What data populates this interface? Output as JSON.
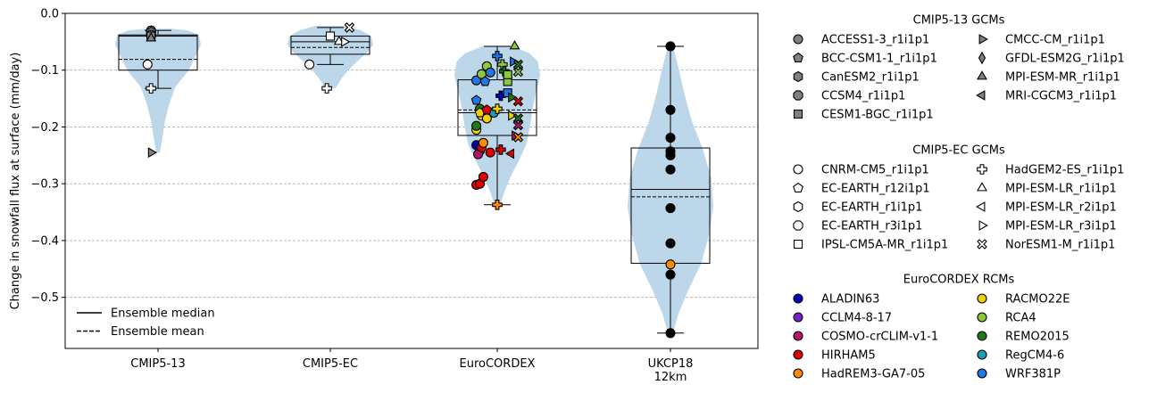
{
  "chart_data": {
    "type": "violin",
    "ylabel": "Change in snowfall flux at surface (mm/day)",
    "ylim": [
      -0.59,
      0.0
    ],
    "yticks": [
      0.0,
      -0.1,
      -0.2,
      -0.3,
      -0.4,
      -0.5
    ],
    "ytick_labels": [
      "0.0",
      "−0.1",
      "−0.2",
      "−0.3",
      "−0.4",
      "−0.5"
    ],
    "grid": "horizontal-dashed",
    "categories": [
      {
        "name": "CMIP5-13",
        "label_lines": [
          "CMIP5-13"
        ]
      },
      {
        "name": "CMIP5-EC",
        "label_lines": [
          "CMIP5-EC"
        ]
      },
      {
        "name": "EuroCORDEX",
        "label_lines": [
          "EuroCORDEX"
        ]
      },
      {
        "name": "UKCP18 12km",
        "label_lines": [
          "UKCP18",
          "12km"
        ]
      }
    ],
    "violin_color": "#bcd6ea",
    "boxes": [
      {
        "q1": -0.1,
        "median": -0.04,
        "q3": -0.038,
        "mean": -0.081,
        "wlo": -0.132,
        "whi": -0.03
      },
      {
        "q1": -0.072,
        "median": -0.05,
        "q3": -0.04,
        "mean": -0.06,
        "wlo": -0.09,
        "whi": -0.025
      },
      {
        "q1": -0.215,
        "median": -0.175,
        "q3": -0.117,
        "mean": -0.17,
        "wlo": -0.337,
        "whi": -0.058
      },
      {
        "q1": -0.44,
        "median": -0.31,
        "q3": -0.237,
        "mean": -0.323,
        "wlo": -0.563,
        "whi": -0.058
      }
    ],
    "violins": [
      {
        "profile": [
          [
            -0.245,
            0.04
          ],
          [
            -0.22,
            0.1
          ],
          [
            -0.19,
            0.16
          ],
          [
            -0.16,
            0.26
          ],
          [
            -0.13,
            0.4
          ],
          [
            -0.1,
            0.72
          ],
          [
            -0.075,
            0.88
          ],
          [
            -0.055,
            1.0
          ],
          [
            -0.038,
            0.95
          ],
          [
            -0.03,
            0.7
          ],
          [
            -0.027,
            0.3
          ]
        ]
      },
      {
        "profile": [
          [
            -0.132,
            0.12
          ],
          [
            -0.115,
            0.26
          ],
          [
            -0.1,
            0.42
          ],
          [
            -0.085,
            0.62
          ],
          [
            -0.07,
            0.85
          ],
          [
            -0.055,
            1.0
          ],
          [
            -0.04,
            0.95
          ],
          [
            -0.03,
            0.72
          ],
          [
            -0.022,
            0.35
          ]
        ]
      },
      {
        "profile": [
          [
            -0.337,
            0.07
          ],
          [
            -0.32,
            0.14
          ],
          [
            -0.3,
            0.24
          ],
          [
            -0.28,
            0.36
          ],
          [
            -0.26,
            0.5
          ],
          [
            -0.23,
            0.68
          ],
          [
            -0.2,
            0.76
          ],
          [
            -0.17,
            0.82
          ],
          [
            -0.14,
            0.9
          ],
          [
            -0.11,
            1.0
          ],
          [
            -0.085,
            0.95
          ],
          [
            -0.07,
            0.75
          ],
          [
            -0.058,
            0.35
          ]
        ]
      },
      {
        "profile": [
          [
            -0.563,
            0.06
          ],
          [
            -0.53,
            0.18
          ],
          [
            -0.49,
            0.4
          ],
          [
            -0.44,
            0.72
          ],
          [
            -0.39,
            0.9
          ],
          [
            -0.34,
            1.0
          ],
          [
            -0.29,
            0.95
          ],
          [
            -0.24,
            0.76
          ],
          [
            -0.19,
            0.5
          ],
          [
            -0.14,
            0.32
          ],
          [
            -0.1,
            0.2
          ],
          [
            -0.07,
            0.1
          ],
          [
            -0.058,
            0.05
          ]
        ]
      }
    ],
    "points": [
      {
        "cat": 0,
        "dx": -0.06,
        "y": -0.09,
        "marker": "circle",
        "fill": "#ffffff"
      },
      {
        "cat": 0,
        "dx": -0.04,
        "y": -0.132,
        "marker": "plus",
        "fill": "#ffffff"
      },
      {
        "cat": 0,
        "dx": -0.04,
        "y": -0.245,
        "marker": "tri-right",
        "fill": "#808080"
      },
      {
        "cat": 0,
        "dx": -0.04,
        "y": -0.03,
        "marker": "circle",
        "fill": "#808080"
      },
      {
        "cat": 0,
        "dx": -0.04,
        "y": -0.035,
        "marker": "pentagon",
        "fill": "#808080"
      },
      {
        "cat": 0,
        "dx": -0.04,
        "y": -0.033,
        "marker": "hexagon",
        "fill": "#808080"
      },
      {
        "cat": 0,
        "dx": -0.04,
        "y": -0.038,
        "marker": "octagon",
        "fill": "#808080"
      },
      {
        "cat": 0,
        "dx": -0.04,
        "y": -0.04,
        "marker": "square",
        "fill": "#808080"
      },
      {
        "cat": 0,
        "dx": -0.04,
        "y": -0.044,
        "marker": "triangle",
        "fill": "#808080"
      },
      {
        "cat": 1,
        "dx": -0.12,
        "y": -0.09,
        "marker": "circle",
        "fill": "#ffffff"
      },
      {
        "cat": 1,
        "dx": -0.02,
        "y": -0.132,
        "marker": "plus",
        "fill": "#ffffff"
      },
      {
        "cat": 1,
        "dx": 0.0,
        "y": -0.04,
        "marker": "square",
        "fill": "#ffffff"
      },
      {
        "cat": 1,
        "dx": 0.05,
        "y": -0.05,
        "marker": "triangle",
        "fill": "#ffffff"
      },
      {
        "cat": 1,
        "dx": 0.08,
        "y": -0.05,
        "marker": "tri-right",
        "fill": "#ffffff"
      },
      {
        "cat": 1,
        "dx": 0.11,
        "y": -0.025,
        "marker": "x",
        "fill": "#ffffff"
      },
      {
        "cat": 2,
        "dx": -0.12,
        "y": -0.232,
        "marker": "circle",
        "fill": "#0000b4"
      },
      {
        "cat": 2,
        "dx": -0.1,
        "y": -0.242,
        "marker": "circle",
        "fill": "#7a1fc8"
      },
      {
        "cat": 2,
        "dx": -0.11,
        "y": -0.248,
        "marker": "circle",
        "fill": "#b4146e"
      },
      {
        "cat": 2,
        "dx": -0.04,
        "y": -0.245,
        "marker": "circle",
        "fill": "#e00000"
      },
      {
        "cat": 2,
        "dx": -0.12,
        "y": -0.302,
        "marker": "circle",
        "fill": "#e00000"
      },
      {
        "cat": 2,
        "dx": -0.1,
        "y": -0.3,
        "marker": "circle",
        "fill": "#e00000"
      },
      {
        "cat": 2,
        "dx": -0.08,
        "y": -0.288,
        "marker": "circle",
        "fill": "#e00000"
      },
      {
        "cat": 2,
        "dx": -0.09,
        "y": -0.236,
        "marker": "circle",
        "fill": "#e00000"
      },
      {
        "cat": 2,
        "dx": -0.08,
        "y": -0.228,
        "marker": "circle",
        "fill": "#ff8c00"
      },
      {
        "cat": 2,
        "dx": -0.12,
        "y": -0.205,
        "marker": "circle",
        "fill": "#f0d000"
      },
      {
        "cat": 2,
        "dx": -0.12,
        "y": -0.198,
        "marker": "circle",
        "fill": "#1a7a1a"
      },
      {
        "cat": 2,
        "dx": -0.09,
        "y": -0.18,
        "marker": "circle",
        "fill": "#f0d000"
      },
      {
        "cat": 2,
        "dx": -0.1,
        "y": -0.168,
        "marker": "circle",
        "fill": "#1a7a1a"
      },
      {
        "cat": 2,
        "dx": -0.06,
        "y": -0.185,
        "marker": "circle",
        "fill": "#f0d000"
      },
      {
        "cat": 2,
        "dx": -0.02,
        "y": -0.175,
        "marker": "circle",
        "fill": "#1aa0b4"
      },
      {
        "cat": 2,
        "dx": -0.12,
        "y": -0.118,
        "marker": "circle",
        "fill": "#1e78e6"
      },
      {
        "cat": 2,
        "dx": -0.09,
        "y": -0.107,
        "marker": "circle",
        "fill": "#8cc83c"
      },
      {
        "cat": 2,
        "dx": -0.06,
        "y": -0.093,
        "marker": "circle",
        "fill": "#8cc83c"
      },
      {
        "cat": 2,
        "dx": -0.04,
        "y": -0.104,
        "marker": "circle",
        "fill": "#1e78e6"
      },
      {
        "cat": 2,
        "dx": 0.02,
        "y": -0.24,
        "marker": "plus",
        "fill": "#e00000"
      },
      {
        "cat": 2,
        "dx": 0.0,
        "y": -0.337,
        "marker": "plus",
        "fill": "#ff8c00"
      },
      {
        "cat": 2,
        "dx": 0.0,
        "y": -0.168,
        "marker": "plus",
        "fill": "#f0d000"
      },
      {
        "cat": 2,
        "dx": 0.02,
        "y": -0.145,
        "marker": "plus",
        "fill": "#0000b4"
      },
      {
        "cat": 2,
        "dx": 0.0,
        "y": -0.075,
        "marker": "plus",
        "fill": "#1e78e6"
      },
      {
        "cat": 2,
        "dx": 0.03,
        "y": -0.09,
        "marker": "plus",
        "fill": "#8cc83c"
      },
      {
        "cat": 2,
        "dx": 0.04,
        "y": -0.102,
        "marker": "plus",
        "fill": "#1a7a1a"
      },
      {
        "cat": 2,
        "dx": -0.12,
        "y": -0.153,
        "marker": "pentagon",
        "fill": "#1e78e6"
      },
      {
        "cat": 2,
        "dx": -0.1,
        "y": -0.175,
        "marker": "pentagon",
        "fill": "#f0d000"
      },
      {
        "cat": 2,
        "dx": -0.06,
        "y": -0.17,
        "marker": "pentagon",
        "fill": "#e00000"
      },
      {
        "cat": 2,
        "dx": -0.07,
        "y": -0.12,
        "marker": "pentagon",
        "fill": "#1e78e6"
      },
      {
        "cat": 2,
        "dx": 0.06,
        "y": -0.12,
        "marker": "square",
        "fill": "#8cc83c"
      },
      {
        "cat": 2,
        "dx": 0.06,
        "y": -0.14,
        "marker": "square",
        "fill": "#1e78e6"
      },
      {
        "cat": 2,
        "dx": 0.06,
        "y": -0.108,
        "marker": "square",
        "fill": "#8cc83c"
      },
      {
        "cat": 2,
        "dx": 0.08,
        "y": -0.148,
        "marker": "tri-right",
        "fill": "#1a7a1a"
      },
      {
        "cat": 2,
        "dx": 0.09,
        "y": -0.085,
        "marker": "tri-right",
        "fill": "#1e78e6"
      },
      {
        "cat": 2,
        "dx": 0.08,
        "y": -0.18,
        "marker": "tri-right",
        "fill": "#f0d000"
      },
      {
        "cat": 2,
        "dx": 0.1,
        "y": -0.215,
        "marker": "tri-right",
        "fill": "#b4146e"
      },
      {
        "cat": 2,
        "dx": 0.1,
        "y": -0.058,
        "marker": "triangle",
        "fill": "#8cc83c"
      },
      {
        "cat": 2,
        "dx": 0.08,
        "y": -0.247,
        "marker": "tri-left",
        "fill": "#e00000"
      },
      {
        "cat": 2,
        "dx": 0.12,
        "y": -0.103,
        "marker": "x",
        "fill": "#8cc83c"
      },
      {
        "cat": 2,
        "dx": 0.12,
        "y": -0.09,
        "marker": "x",
        "fill": "#1a7a1a"
      },
      {
        "cat": 2,
        "dx": 0.12,
        "y": -0.155,
        "marker": "x",
        "fill": "#e00000"
      },
      {
        "cat": 2,
        "dx": 0.12,
        "y": -0.185,
        "marker": "x",
        "fill": "#1a7a1a"
      },
      {
        "cat": 2,
        "dx": 0.12,
        "y": -0.197,
        "marker": "x",
        "fill": "#b4146e"
      },
      {
        "cat": 2,
        "dx": 0.12,
        "y": -0.218,
        "marker": "x",
        "fill": "#ff8c00"
      },
      {
        "cat": 3,
        "dx": 0.0,
        "y": -0.058,
        "marker": "circle",
        "fill": "#000000"
      },
      {
        "cat": 3,
        "dx": 0.0,
        "y": -0.17,
        "marker": "circle",
        "fill": "#000000"
      },
      {
        "cat": 3,
        "dx": 0.0,
        "y": -0.219,
        "marker": "circle",
        "fill": "#000000"
      },
      {
        "cat": 3,
        "dx": 0.0,
        "y": -0.243,
        "marker": "circle",
        "fill": "#000000"
      },
      {
        "cat": 3,
        "dx": 0.0,
        "y": -0.25,
        "marker": "circle",
        "fill": "#000000"
      },
      {
        "cat": 3,
        "dx": 0.0,
        "y": -0.275,
        "marker": "circle",
        "fill": "#000000"
      },
      {
        "cat": 3,
        "dx": 0.0,
        "y": -0.343,
        "marker": "circle",
        "fill": "#000000"
      },
      {
        "cat": 3,
        "dx": 0.0,
        "y": -0.405,
        "marker": "circle",
        "fill": "#000000"
      },
      {
        "cat": 3,
        "dx": 0.0,
        "y": -0.442,
        "marker": "circle",
        "fill": "#ff8c00"
      },
      {
        "cat": 3,
        "dx": 0.0,
        "y": -0.46,
        "marker": "circle",
        "fill": "#000000"
      },
      {
        "cat": 3,
        "dx": 0.0,
        "y": -0.563,
        "marker": "circle",
        "fill": "#000000"
      }
    ],
    "inner_legend": [
      {
        "label": "Ensemble median",
        "style": "solid"
      },
      {
        "label": "Ensemble mean",
        "style": "dashed"
      }
    ],
    "legend_groups": [
      {
        "title": "CMIP5-13 GCMs",
        "columns": [
          [
            {
              "label": "ACCESS1-3_r1i1p1",
              "marker": "circle",
              "fill": "#808080"
            },
            {
              "label": "BCC-CSM1-1_r1i1p1",
              "marker": "pentagon",
              "fill": "#808080"
            },
            {
              "label": "CanESM2_r1i1p1",
              "marker": "hexagon",
              "fill": "#808080"
            },
            {
              "label": "CCSM4_r1i1p1",
              "marker": "octagon",
              "fill": "#808080"
            },
            {
              "label": "CESM1-BGC_r1i1p1",
              "marker": "square",
              "fill": "#808080"
            }
          ],
          [
            {
              "label": "CMCC-CM_r1i1p1",
              "marker": "tri-right",
              "fill": "#808080"
            },
            {
              "label": "GFDL-ESM2G_r1i1p1",
              "marker": "diamond",
              "fill": "#808080"
            },
            {
              "label": "MPI-ESM-MR_r1i1p1",
              "marker": "triangle",
              "fill": "#808080"
            },
            {
              "label": "MRI-CGCM3_r1i1p1",
              "marker": "tri-left",
              "fill": "#808080"
            }
          ]
        ]
      },
      {
        "title": "CMIP5-EC GCMs",
        "columns": [
          [
            {
              "label": "CNRM-CM5_r1i1p1",
              "marker": "circle",
              "fill": "#ffffff"
            },
            {
              "label": "EC-EARTH_r12i1p1",
              "marker": "pentagon",
              "fill": "#ffffff"
            },
            {
              "label": "EC-EARTH_r1i1p1",
              "marker": "hexagon",
              "fill": "#ffffff"
            },
            {
              "label": "EC-EARTH_r3i1p1",
              "marker": "octagon",
              "fill": "#ffffff"
            },
            {
              "label": "IPSL-CM5A-MR_r1i1p1",
              "marker": "square",
              "fill": "#ffffff"
            }
          ],
          [
            {
              "label": "HadGEM2-ES_r1i1p1",
              "marker": "plus",
              "fill": "#ffffff"
            },
            {
              "label": "MPI-ESM-LR_r1i1p1",
              "marker": "triangle",
              "fill": "#ffffff"
            },
            {
              "label": "MPI-ESM-LR_r2i1p1",
              "marker": "tri-left",
              "fill": "#ffffff"
            },
            {
              "label": "MPI-ESM-LR_r3i1p1",
              "marker": "tri-right",
              "fill": "#ffffff"
            },
            {
              "label": "NorESM1-M_r1i1p1",
              "marker": "x",
              "fill": "#ffffff"
            }
          ]
        ]
      },
      {
        "title": "EuroCORDEX RCMs",
        "columns": [
          [
            {
              "label": "ALADIN63",
              "marker": "circle",
              "fill": "#0000b4"
            },
            {
              "label": "CCLM4-8-17",
              "marker": "circle",
              "fill": "#7a1fc8"
            },
            {
              "label": "COSMO-crCLIM-v1-1",
              "marker": "circle",
              "fill": "#b4146e"
            },
            {
              "label": "HIRHAM5",
              "marker": "circle",
              "fill": "#e00000"
            },
            {
              "label": "HadREM3-GA7-05",
              "marker": "circle",
              "fill": "#ff8c00"
            }
          ],
          [
            {
              "label": "RACMO22E",
              "marker": "circle",
              "fill": "#f0d000"
            },
            {
              "label": "RCA4",
              "marker": "circle",
              "fill": "#8cc83c"
            },
            {
              "label": "REMO2015",
              "marker": "circle",
              "fill": "#1a7a1a"
            },
            {
              "label": "RegCM4-6",
              "marker": "circle",
              "fill": "#1aa0b4"
            },
            {
              "label": "WRF381P",
              "marker": "circle",
              "fill": "#1e78e6"
            }
          ]
        ]
      }
    ]
  }
}
